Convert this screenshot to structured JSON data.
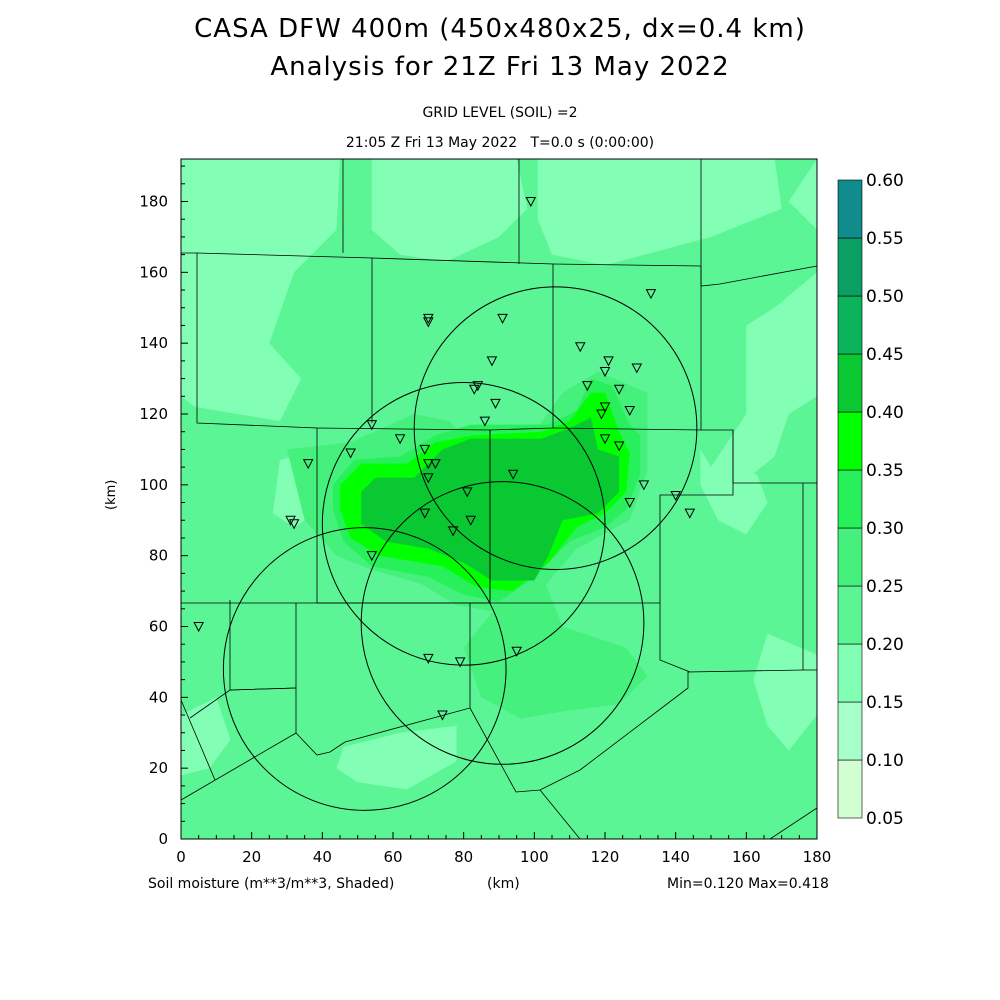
{
  "header": {
    "title_line1": "CASA DFW 400m (450x480x25, dx=0.4 km)",
    "title_line2": "Analysis for 21Z Fri 13 May 2022",
    "subtitle_line1": "GRID LEVEL (SOIL) =2",
    "subtitle_line2": "21:05 Z Fri 13 May 2022   T=0.0 s (0:00:00)"
  },
  "footer": {
    "variable": "Soil moisture (m**3/m**3, Shaded)",
    "x_unit": "(km)",
    "minmax": "Min=0.120 Max=0.418"
  },
  "axes": {
    "ylabel": "(km)",
    "x_ticks": [
      "0",
      "20",
      "40",
      "60",
      "80",
      "100",
      "120",
      "140",
      "160",
      "180"
    ],
    "y_ticks": [
      "0",
      "20",
      "40",
      "60",
      "80",
      "100",
      "120",
      "140",
      "160",
      "180"
    ],
    "x_range": [
      0,
      180
    ],
    "y_range": [
      0,
      192
    ]
  },
  "colorbar": {
    "labels": [
      "0.05",
      "0.10",
      "0.15",
      "0.20",
      "0.25",
      "0.30",
      "0.35",
      "0.40",
      "0.45",
      "0.50",
      "0.55",
      "0.60"
    ],
    "colors": [
      "#d2ffd2",
      "#a6ffc8",
      "#82ffb4",
      "#5cf596",
      "#46f07c",
      "#28f05a",
      "#00ff00",
      "#0ac832",
      "#0ab45a",
      "#0aa064",
      "#118c8c",
      "#0a64f0"
    ]
  },
  "chart_data": {
    "type": "heatmap",
    "title": "Analysis for 21Z Fri 13 May 2022",
    "variable": "Soil moisture (m**3/m**3, Shaded)",
    "xlabel": "(km)",
    "ylabel": "(km)",
    "xlim": [
      0,
      180
    ],
    "ylim": [
      0,
      192
    ],
    "value_min": 0.12,
    "value_max": 0.418,
    "contour_levels": [
      0.05,
      0.1,
      0.15,
      0.2,
      0.25,
      0.3,
      0.35,
      0.4,
      0.45,
      0.5,
      0.55,
      0.6
    ],
    "background_value": 0.22,
    "regions": [
      {
        "value": 0.17,
        "polygon": [
          [
            0,
            192
          ],
          [
            45,
            192
          ],
          [
            44,
            172
          ],
          [
            32,
            160
          ],
          [
            25,
            140
          ],
          [
            34,
            130
          ],
          [
            28,
            118
          ],
          [
            4,
            122
          ],
          [
            0,
            125
          ]
        ]
      },
      {
        "value": 0.17,
        "polygon": [
          [
            54,
            192
          ],
          [
            95,
            192
          ],
          [
            98,
            178
          ],
          [
            90,
            170
          ],
          [
            75,
            163
          ],
          [
            62,
            165
          ],
          [
            54,
            172
          ]
        ]
      },
      {
        "value": 0.17,
        "polygon": [
          [
            101,
            192
          ],
          [
            168,
            192
          ],
          [
            170,
            178
          ],
          [
            150,
            170
          ],
          [
            120,
            162
          ],
          [
            105,
            165
          ],
          [
            101,
            175
          ]
        ]
      },
      {
        "value": 0.17,
        "polygon": [
          [
            172,
            180
          ],
          [
            180,
            172
          ],
          [
            180,
            160
          ],
          [
            168,
            150
          ],
          [
            160,
            145
          ],
          [
            160,
            120
          ],
          [
            150,
            105
          ],
          [
            158,
            100
          ],
          [
            168,
            108
          ],
          [
            172,
            120
          ],
          [
            180,
            125
          ],
          [
            180,
            192
          ]
        ]
      },
      {
        "value": 0.17,
        "polygon": [
          [
            147,
            110
          ],
          [
            150,
            105
          ],
          [
            163,
            103
          ],
          [
            166,
            95
          ],
          [
            160,
            86
          ],
          [
            152,
            90
          ],
          [
            147,
            100
          ]
        ]
      },
      {
        "value": 0.17,
        "polygon": [
          [
            166,
            58
          ],
          [
            180,
            52
          ],
          [
            180,
            35
          ],
          [
            172,
            25
          ],
          [
            166,
            32
          ],
          [
            162,
            45
          ]
        ]
      },
      {
        "value": 0.17,
        "polygon": [
          [
            46,
            26
          ],
          [
            62,
            30
          ],
          [
            78,
            32
          ],
          [
            78,
            22
          ],
          [
            64,
            14
          ],
          [
            50,
            16
          ],
          [
            44,
            20
          ]
        ]
      },
      {
        "value": 0.17,
        "polygon": [
          [
            0,
            35
          ],
          [
            10,
            40
          ],
          [
            14,
            28
          ],
          [
            8,
            20
          ],
          [
            0,
            18
          ]
        ]
      },
      {
        "value": 0.17,
        "polygon": [
          [
            28,
            107
          ],
          [
            40,
            110
          ],
          [
            38,
            92
          ],
          [
            32,
            88
          ],
          [
            26,
            92
          ]
        ]
      },
      {
        "value": 0.25,
        "polygon": [
          [
            30,
            110
          ],
          [
            48,
            112
          ],
          [
            66,
            120
          ],
          [
            76,
            118
          ],
          [
            83,
            110
          ],
          [
            98,
            112
          ],
          [
            108,
            126
          ],
          [
            118,
            132
          ],
          [
            132,
            126
          ],
          [
            132,
            104
          ],
          [
            127,
            90
          ],
          [
            112,
            82
          ],
          [
            100,
            68
          ],
          [
            90,
            64
          ],
          [
            78,
            66
          ],
          [
            68,
            72
          ],
          [
            54,
            76
          ],
          [
            44,
            80
          ],
          [
            35,
            90
          ]
        ]
      },
      {
        "value": 0.25,
        "polygon": [
          [
            100,
            80
          ],
          [
            108,
            60
          ],
          [
            126,
            54
          ],
          [
            132,
            46
          ],
          [
            124,
            38
          ],
          [
            108,
            36
          ],
          [
            96,
            34
          ],
          [
            85,
            40
          ],
          [
            80,
            54
          ],
          [
            88,
            64
          ]
        ]
      },
      {
        "value": 0.3,
        "polygon": [
          [
            43,
            100
          ],
          [
            49,
            107
          ],
          [
            62,
            108
          ],
          [
            72,
            114
          ],
          [
            82,
            117
          ],
          [
            104,
            117
          ],
          [
            112,
            121
          ],
          [
            116,
            130
          ],
          [
            122,
            128
          ],
          [
            127,
            117
          ],
          [
            130,
            114
          ],
          [
            130,
            103
          ],
          [
            126,
            93
          ],
          [
            120,
            88
          ],
          [
            110,
            84
          ],
          [
            100,
            74
          ],
          [
            90,
            67
          ],
          [
            80,
            69
          ],
          [
            70,
            74
          ],
          [
            54,
            77
          ],
          [
            46,
            84
          ],
          [
            43,
            93
          ]
        ]
      },
      {
        "value": 0.35,
        "polygon": [
          [
            45,
            100
          ],
          [
            51,
            106
          ],
          [
            64,
            106
          ],
          [
            72,
            112
          ],
          [
            83,
            114
          ],
          [
            102,
            115
          ],
          [
            110,
            118
          ],
          [
            116,
            126
          ],
          [
            120,
            126
          ],
          [
            124,
            115
          ],
          [
            127,
            109
          ],
          [
            126,
            98
          ],
          [
            120,
            92
          ],
          [
            112,
            88
          ],
          [
            104,
            78
          ],
          [
            94,
            70
          ],
          [
            84,
            71
          ],
          [
            74,
            77
          ],
          [
            56,
            80
          ],
          [
            48,
            85
          ],
          [
            45,
            93
          ]
        ]
      },
      {
        "value": 0.4,
        "polygon": [
          [
            51,
            98
          ],
          [
            55,
            102
          ],
          [
            66,
            102
          ],
          [
            74,
            110
          ],
          [
            82,
            113
          ],
          [
            102,
            113
          ],
          [
            110,
            116
          ],
          [
            116,
            119
          ],
          [
            118,
            110
          ],
          [
            124,
            108
          ],
          [
            124,
            98
          ],
          [
            118,
            92
          ],
          [
            108,
            90
          ],
          [
            104,
            80
          ],
          [
            100,
            73
          ],
          [
            88,
            73
          ],
          [
            80,
            78
          ],
          [
            70,
            82
          ],
          [
            58,
            84
          ],
          [
            51,
            89
          ]
        ]
      }
    ],
    "radar_range_rings": [
      {
        "center_km": [
          106,
          116
        ],
        "radius_km": 40
      },
      {
        "center_km": [
          80,
          89
        ],
        "radius_km": 40
      },
      {
        "center_km": [
          91,
          61
        ],
        "radius_km": 40
      },
      {
        "center_km": [
          52,
          48
        ],
        "radius_km": 40
      }
    ],
    "station_markers_km": [
      [
        99,
        180
      ],
      [
        133,
        154
      ],
      [
        70,
        147
      ],
      [
        70,
        146
      ],
      [
        91,
        147
      ],
      [
        113,
        139
      ],
      [
        88,
        135
      ],
      [
        121,
        135
      ],
      [
        120,
        132
      ],
      [
        129,
        133
      ],
      [
        84,
        128
      ],
      [
        83,
        127
      ],
      [
        115,
        128
      ],
      [
        124,
        127
      ],
      [
        89,
        123
      ],
      [
        120,
        122
      ],
      [
        119,
        120
      ],
      [
        127,
        121
      ],
      [
        86,
        118
      ],
      [
        54,
        117
      ],
      [
        62,
        113
      ],
      [
        120,
        113
      ],
      [
        124,
        111
      ],
      [
        69,
        110
      ],
      [
        48,
        109
      ],
      [
        70,
        106
      ],
      [
        72,
        106
      ],
      [
        36,
        106
      ],
      [
        94,
        103
      ],
      [
        70,
        102
      ],
      [
        131,
        100
      ],
      [
        81,
        98
      ],
      [
        140,
        97
      ],
      [
        127,
        95
      ],
      [
        144,
        92
      ],
      [
        69,
        92
      ],
      [
        82,
        90
      ],
      [
        31,
        90
      ],
      [
        32,
        89
      ],
      [
        77,
        87
      ],
      [
        54,
        80
      ],
      [
        5,
        60
      ],
      [
        95,
        53
      ],
      [
        70,
        51
      ],
      [
        79,
        50
      ],
      [
        74,
        35
      ]
    ]
  }
}
